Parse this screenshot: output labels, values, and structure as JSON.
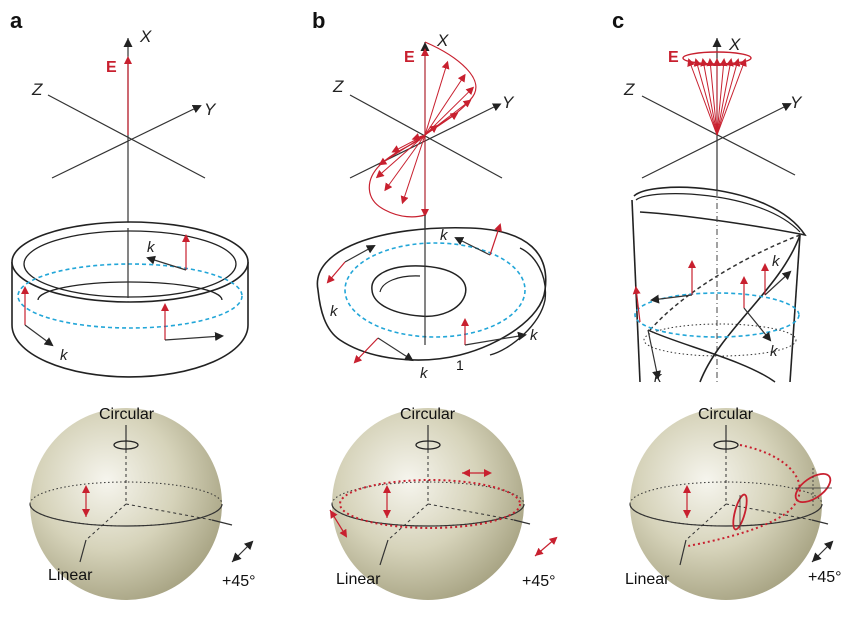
{
  "panels": [
    {
      "letter": "a",
      "field_label": "E",
      "axes": {
        "x": "X",
        "y": "Y",
        "z": "Z"
      },
      "k_labels": [
        "k",
        "k"
      ],
      "sphere": {
        "top": "Circular",
        "left": "Linear",
        "right": "+45°"
      }
    },
    {
      "letter": "b",
      "field_label": "E",
      "axes": {
        "x": "X",
        "y": "Y",
        "z": "Z"
      },
      "k_labels": [
        "k",
        "k",
        "k",
        "k"
      ],
      "number_label": "1",
      "sphere": {
        "top": "Circular",
        "left": "Linear",
        "right": "+45°"
      }
    },
    {
      "letter": "c",
      "field_label": "E",
      "axes": {
        "x": "X",
        "y": "Y",
        "z": "Z"
      },
      "k_labels": [
        "k",
        "k",
        "k"
      ],
      "sphere": {
        "top": "Circular",
        "left": "Linear",
        "right": "+45°"
      }
    }
  ],
  "colors": {
    "field": "#c8202f",
    "path": "#22a6d8",
    "sphere": "#c9c6a8",
    "ink": "#222222"
  }
}
